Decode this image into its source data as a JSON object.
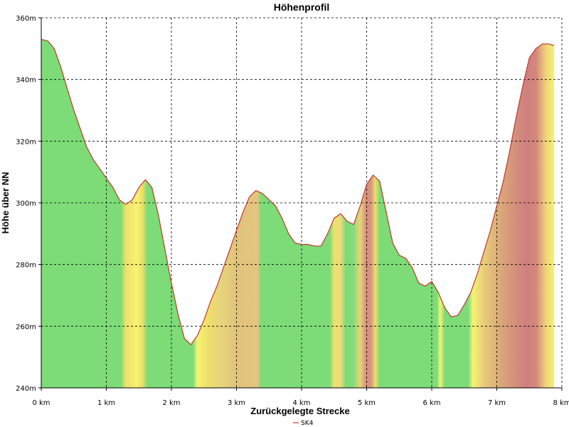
{
  "chart_data": {
    "type": "area",
    "title": "Höhenprofil",
    "xlabel": "Zurückgelegte Strecke",
    "ylabel": "Höhe über NN",
    "xlim": [
      0,
      8
    ],
    "ylim": [
      240,
      360
    ],
    "x_tick_labels": [
      "0 km",
      "1 km",
      "2 km",
      "3 km",
      "4 km",
      "5 km",
      "6 km",
      "7 km",
      "8 km"
    ],
    "y_tick_labels": [
      "240m",
      "260m",
      "280m",
      "300m",
      "320m",
      "340m",
      "360m"
    ],
    "grid": true,
    "legend_position": "bottom-center",
    "series": [
      {
        "name": "SK4",
        "line_color": "#c0392b",
        "x": [
          0,
          0.1,
          0.2,
          0.3,
          0.4,
          0.5,
          0.6,
          0.7,
          0.8,
          0.9,
          1.0,
          1.1,
          1.2,
          1.3,
          1.4,
          1.5,
          1.6,
          1.7,
          1.8,
          1.9,
          2.0,
          2.1,
          2.2,
          2.3,
          2.4,
          2.5,
          2.6,
          2.7,
          2.8,
          2.9,
          3.0,
          3.1,
          3.2,
          3.3,
          3.4,
          3.5,
          3.6,
          3.7,
          3.8,
          3.9,
          4.0,
          4.1,
          4.2,
          4.3,
          4.4,
          4.5,
          4.6,
          4.7,
          4.8,
          4.9,
          5.0,
          5.1,
          5.2,
          5.3,
          5.4,
          5.5,
          5.6,
          5.7,
          5.8,
          5.9,
          6.0,
          6.1,
          6.2,
          6.3,
          6.4,
          6.5,
          6.6,
          6.7,
          6.8,
          6.9,
          7.0,
          7.1,
          7.2,
          7.3,
          7.4,
          7.5,
          7.6,
          7.7,
          7.8,
          7.88
        ],
        "values": [
          353,
          352.5,
          350,
          344,
          337,
          330,
          324,
          318,
          314,
          311,
          308,
          305,
          301,
          299.5,
          301,
          305,
          307.5,
          305,
          296,
          285,
          274,
          264,
          256,
          254,
          257,
          262,
          268,
          273,
          279,
          285,
          291,
          297,
          302,
          304,
          303,
          301,
          299,
          295,
          290,
          287,
          286.5,
          286.5,
          286,
          286,
          290,
          295,
          296.5,
          294,
          293,
          299,
          306,
          309,
          307,
          297,
          287,
          283,
          282,
          279,
          274,
          273,
          274.5,
          271,
          266,
          263,
          263.5,
          267,
          271,
          277,
          284,
          291,
          299,
          307,
          317,
          328,
          338,
          347,
          350,
          351.5,
          351.5,
          351
        ]
      }
    ],
    "fill_gradient_stops": [
      {
        "x": 0.0,
        "color": "#7ddb78"
      },
      {
        "x": 1.22,
        "color": "#7ddb78"
      },
      {
        "x": 1.3,
        "color": "#efe06a"
      },
      {
        "x": 1.47,
        "color": "#f6f372"
      },
      {
        "x": 1.55,
        "color": "#efe06a"
      },
      {
        "x": 1.63,
        "color": "#7ddb78"
      },
      {
        "x": 2.33,
        "color": "#7ddb78"
      },
      {
        "x": 2.4,
        "color": "#f6f372"
      },
      {
        "x": 2.55,
        "color": "#efe06a"
      },
      {
        "x": 2.75,
        "color": "#e7d47c"
      },
      {
        "x": 3.0,
        "color": "#e2c37a"
      },
      {
        "x": 3.32,
        "color": "#e4c47e"
      },
      {
        "x": 3.38,
        "color": "#7ddb78"
      },
      {
        "x": 4.43,
        "color": "#7ddb78"
      },
      {
        "x": 4.5,
        "color": "#efe06a"
      },
      {
        "x": 4.6,
        "color": "#eadb7a"
      },
      {
        "x": 4.68,
        "color": "#7ddb78"
      },
      {
        "x": 4.78,
        "color": "#7ddb78"
      },
      {
        "x": 4.9,
        "color": "#e8d47a"
      },
      {
        "x": 5.0,
        "color": "#d98880"
      },
      {
        "x": 5.08,
        "color": "#d8a07c"
      },
      {
        "x": 5.13,
        "color": "#efe06a"
      },
      {
        "x": 5.2,
        "color": "#7ddb78"
      },
      {
        "x": 6.08,
        "color": "#7ddb78"
      },
      {
        "x": 6.13,
        "color": "#f6f372"
      },
      {
        "x": 6.2,
        "color": "#7ddb78"
      },
      {
        "x": 6.56,
        "color": "#7ddb78"
      },
      {
        "x": 6.63,
        "color": "#f6f372"
      },
      {
        "x": 6.8,
        "color": "#e7cc79"
      },
      {
        "x": 7.1,
        "color": "#d9a27a"
      },
      {
        "x": 7.45,
        "color": "#cf7f7e"
      },
      {
        "x": 7.6,
        "color": "#d4867c"
      },
      {
        "x": 7.75,
        "color": "#eed27a"
      },
      {
        "x": 7.88,
        "color": "#f6f372"
      }
    ]
  }
}
